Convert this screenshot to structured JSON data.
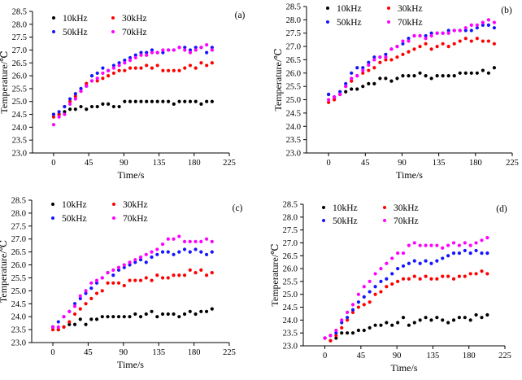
{
  "figure": {
    "background": "#ffffff",
    "description": "Four scatter subplots of temperature rise over time at four excitation frequencies",
    "series_colors": {
      "10kHz": "#000000",
      "30kHz": "#ff0000",
      "50kHz": "#1414ff",
      "70kHz": "#ff00ff"
    }
  },
  "chart_data": [
    {
      "type": "scatter",
      "panel_label": "(a)",
      "xlabel": "Time/s",
      "ylabel": "Temperature/℃",
      "xlim": [
        -27,
        225
      ],
      "ylim": [
        23.0,
        28.5
      ],
      "xticks": [
        0,
        45,
        90,
        135,
        180,
        225
      ],
      "yticks": [
        23.0,
        23.5,
        24.0,
        24.5,
        25.0,
        25.5,
        26.0,
        26.5,
        27.0,
        27.5,
        28.0,
        28.5
      ],
      "grid": false,
      "legend_position": "top-left-inside",
      "x_start": 0,
      "x_step": 7,
      "series": [
        {
          "name": "10kHz",
          "color": "#000000",
          "values": [
            24.5,
            24.5,
            24.6,
            24.7,
            24.7,
            24.8,
            24.7,
            24.8,
            24.8,
            24.9,
            24.9,
            24.8,
            24.8,
            25.0,
            25.0,
            25.0,
            25.0,
            25.0,
            25.0,
            25.0,
            25.0,
            25.0,
            24.9,
            25.0,
            25.0,
            25.0,
            25.0,
            24.9,
            25.0,
            25.0
          ]
        },
        {
          "name": "30kHz",
          "color": "#ff0000",
          "values": [
            24.4,
            24.5,
            24.8,
            25.0,
            25.2,
            25.4,
            25.7,
            25.8,
            25.8,
            25.9,
            26.0,
            26.1,
            26.2,
            26.2,
            26.3,
            26.3,
            26.3,
            26.4,
            26.3,
            26.4,
            26.2,
            26.2,
            26.2,
            26.2,
            26.3,
            26.4,
            26.3,
            26.5,
            26.4,
            26.5
          ]
        },
        {
          "name": "50kHz",
          "color": "#1414ff",
          "values": [
            24.5,
            24.6,
            24.8,
            25.1,
            25.3,
            25.5,
            25.6,
            26.0,
            26.1,
            26.3,
            26.2,
            26.4,
            26.5,
            26.6,
            26.7,
            26.8,
            26.9,
            26.9,
            27.0,
            26.9,
            26.9,
            27.0,
            27.0,
            27.1,
            27.1,
            27.0,
            27.1,
            27.1,
            26.9,
            27.1
          ]
        },
        {
          "name": "70kHz",
          "color": "#ff00ff",
          "values": [
            24.1,
            24.4,
            24.5,
            24.9,
            25.1,
            25.4,
            25.6,
            25.8,
            25.9,
            26.1,
            26.2,
            26.3,
            26.4,
            26.5,
            26.6,
            26.7,
            26.8,
            26.8,
            26.9,
            26.9,
            27.0,
            27.0,
            27.0,
            27.1,
            27.0,
            26.9,
            27.0,
            27.1,
            27.2,
            27.0
          ]
        }
      ]
    },
    {
      "type": "scatter",
      "panel_label": "(b)",
      "xlabel": "Time/s",
      "ylabel": "Temperature/℃",
      "xlim": [
        -27,
        225
      ],
      "ylim": [
        23.0,
        28.5
      ],
      "xticks": [
        0,
        45,
        90,
        135,
        180,
        225
      ],
      "yticks": [
        23.0,
        23.5,
        24.0,
        24.5,
        25.0,
        25.5,
        26.0,
        26.5,
        27.0,
        27.5,
        28.0,
        28.5
      ],
      "grid": false,
      "legend_position": "top-left-inside",
      "x_start": 0,
      "x_step": 7,
      "series": [
        {
          "name": "10kHz",
          "color": "#000000",
          "values": [
            25.2,
            25.1,
            25.2,
            25.3,
            25.4,
            25.4,
            25.5,
            25.6,
            25.6,
            25.8,
            25.8,
            25.7,
            25.8,
            25.9,
            25.9,
            25.9,
            26.0,
            25.9,
            25.8,
            25.9,
            25.9,
            25.9,
            25.9,
            26.0,
            26.0,
            26.0,
            26.0,
            26.1,
            26.0,
            26.2
          ]
        },
        {
          "name": "30kHz",
          "color": "#ff0000",
          "values": [
            24.9,
            25.0,
            25.2,
            25.5,
            25.7,
            25.9,
            26.0,
            26.1,
            26.2,
            26.4,
            26.5,
            26.5,
            26.6,
            26.7,
            26.8,
            26.9,
            27.0,
            27.1,
            26.9,
            27.0,
            27.1,
            27.0,
            27.1,
            27.2,
            27.3,
            27.2,
            27.3,
            27.2,
            27.2,
            27.1
          ]
        },
        {
          "name": "50kHz",
          "color": "#1414ff",
          "values": [
            25.2,
            25.1,
            25.3,
            25.6,
            26.0,
            26.2,
            26.2,
            26.4,
            26.6,
            26.6,
            26.7,
            26.9,
            27.0,
            27.1,
            27.3,
            27.4,
            27.4,
            27.4,
            27.5,
            27.5,
            27.5,
            27.6,
            27.6,
            27.6,
            27.6,
            27.6,
            27.7,
            27.8,
            27.8,
            27.7
          ]
        },
        {
          "name": "70kHz",
          "color": "#ff00ff",
          "values": [
            25.0,
            25.1,
            25.2,
            25.5,
            25.8,
            25.9,
            26.1,
            26.3,
            26.5,
            26.6,
            26.6,
            26.9,
            27.0,
            27.2,
            27.2,
            27.4,
            27.4,
            27.3,
            27.4,
            27.5,
            27.5,
            27.5,
            27.6,
            27.6,
            27.7,
            27.8,
            27.8,
            27.9,
            28.0,
            27.9
          ]
        }
      ]
    },
    {
      "type": "scatter",
      "panel_label": "(c)",
      "xlabel": "Time/s",
      "ylabel": "Temperature/℃",
      "xlim": [
        -27,
        225
      ],
      "ylim": [
        23.0,
        28.5
      ],
      "xticks": [
        0,
        45,
        90,
        135,
        180,
        225
      ],
      "yticks": [
        23.0,
        23.5,
        24.0,
        24.5,
        25.0,
        25.5,
        26.0,
        26.5,
        27.0,
        27.5,
        28.0,
        28.5
      ],
      "grid": false,
      "legend_position": "top-left-inside",
      "x_start": 0,
      "x_step": 7,
      "series": [
        {
          "name": "10kHz",
          "color": "#000000",
          "values": [
            23.6,
            23.5,
            23.6,
            23.7,
            23.7,
            23.9,
            23.7,
            23.9,
            23.9,
            24.0,
            24.0,
            24.0,
            24.0,
            24.0,
            24.0,
            24.1,
            24.0,
            24.1,
            24.2,
            24.0,
            24.1,
            24.1,
            24.1,
            24.0,
            24.1,
            24.2,
            24.1,
            24.2,
            24.2,
            24.3
          ]
        },
        {
          "name": "30kHz",
          "color": "#ff0000",
          "values": [
            23.5,
            23.5,
            23.6,
            23.8,
            24.1,
            24.3,
            24.5,
            24.7,
            24.9,
            25.0,
            25.3,
            25.3,
            25.3,
            25.2,
            25.4,
            25.4,
            25.4,
            25.5,
            25.4,
            25.6,
            25.5,
            25.5,
            25.6,
            25.6,
            25.6,
            25.8,
            25.7,
            25.8,
            25.6,
            25.7
          ]
        },
        {
          "name": "50kHz",
          "color": "#1414ff",
          "values": [
            23.6,
            23.8,
            24.0,
            24.2,
            24.5,
            24.7,
            24.9,
            25.1,
            25.3,
            25.5,
            25.7,
            25.6,
            25.8,
            25.9,
            26.0,
            26.1,
            26.2,
            26.1,
            26.3,
            26.4,
            26.5,
            26.5,
            26.4,
            26.5,
            26.6,
            26.5,
            26.6,
            26.5,
            26.4,
            26.5
          ]
        },
        {
          "name": "70kHz",
          "color": "#ff00ff",
          "values": [
            23.6,
            23.6,
            24.0,
            24.2,
            24.4,
            24.8,
            25.0,
            25.3,
            25.4,
            25.5,
            25.7,
            25.8,
            25.9,
            26.0,
            26.1,
            26.2,
            26.3,
            26.4,
            26.5,
            26.6,
            26.8,
            27.0,
            27.0,
            27.1,
            26.9,
            26.9,
            26.9,
            26.9,
            27.0,
            26.9
          ]
        }
      ]
    },
    {
      "type": "scatter",
      "panel_label": "(d)",
      "xlabel": "Time/s",
      "ylabel": "Temperature/℃",
      "xlim": [
        -27,
        225
      ],
      "ylim": [
        23.0,
        28.5
      ],
      "xticks": [
        0,
        45,
        90,
        135,
        180,
        225
      ],
      "yticks": [
        23.0,
        23.5,
        24.0,
        24.5,
        25.0,
        25.5,
        26.0,
        26.5,
        27.0,
        27.5,
        28.0,
        28.5
      ],
      "grid": false,
      "legend_position": "top-left-inside",
      "x_start": 0,
      "x_step": 7,
      "series": [
        {
          "name": "10kHz",
          "color": "#000000",
          "values": [
            23.3,
            23.2,
            23.3,
            23.5,
            23.5,
            23.5,
            23.6,
            23.6,
            23.7,
            23.8,
            23.8,
            23.9,
            23.8,
            23.9,
            24.1,
            23.8,
            23.9,
            24.0,
            24.1,
            24.0,
            24.1,
            24.0,
            23.9,
            24.0,
            24.1,
            24.1,
            24.0,
            24.2,
            24.1,
            24.2
          ]
        },
        {
          "name": "30kHz",
          "color": "#ff0000",
          "values": [
            23.3,
            23.2,
            23.4,
            23.7,
            24.0,
            24.3,
            24.5,
            24.6,
            24.7,
            25.0,
            25.1,
            25.3,
            25.4,
            25.5,
            25.6,
            25.6,
            25.7,
            25.6,
            25.7,
            25.6,
            25.6,
            25.7,
            25.7,
            25.6,
            25.7,
            25.7,
            25.8,
            25.8,
            25.9,
            25.8
          ]
        },
        {
          "name": "50kHz",
          "color": "#1414ff",
          "values": [
            23.3,
            23.4,
            23.5,
            23.9,
            24.1,
            24.4,
            24.7,
            24.9,
            25.1,
            25.3,
            25.5,
            25.6,
            25.8,
            26.0,
            26.1,
            26.2,
            26.3,
            26.2,
            26.3,
            26.2,
            26.3,
            26.4,
            26.5,
            26.6,
            26.6,
            26.7,
            26.6,
            26.7,
            26.6,
            26.6
          ]
        },
        {
          "name": "70kHz",
          "color": "#ff00ff",
          "values": [
            23.3,
            23.4,
            23.6,
            24.0,
            24.3,
            24.6,
            25.0,
            25.3,
            25.5,
            25.8,
            26.0,
            26.2,
            26.4,
            26.6,
            26.6,
            26.9,
            27.0,
            26.9,
            26.9,
            26.9,
            26.9,
            26.8,
            26.9,
            27.0,
            26.9,
            27.0,
            26.9,
            27.0,
            27.1,
            27.2
          ]
        }
      ]
    }
  ]
}
